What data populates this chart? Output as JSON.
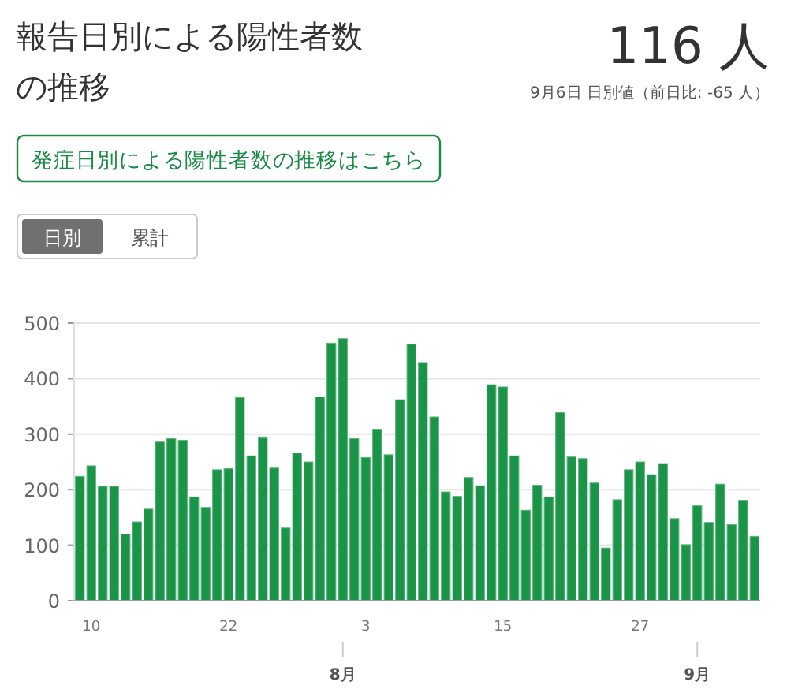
{
  "chart_data": {
    "type": "bar",
    "title": "報告日別による陽性者数の推移",
    "annotations": [
      "116 人",
      "9月6日 日別値（前日比: -65 人）",
      "発症日別による陽性者数の推移はこちら",
      "日別",
      "累計",
      {
        "text": "8月",
        "x": "--08-01"
      },
      {
        "text": "9月",
        "x": "--09-01"
      }
    ],
    "xlim": [
      "--07-09",
      "--09-06"
    ],
    "x": [
      "--07-09",
      "--07-10",
      "--07-11",
      "--07-12",
      "--07-13",
      "--07-14",
      "--07-15",
      "--07-16",
      "--07-17",
      "--07-18",
      "--07-19",
      "--07-20",
      "--07-21",
      "--07-22",
      "--07-23",
      "--07-24",
      "--07-25",
      "--07-26",
      "--07-27",
      "--07-28",
      "--07-29",
      "--07-30",
      "--07-31",
      "--08-01",
      "--08-02",
      "--08-03",
      "--08-04",
      "--08-05",
      "--08-06",
      "--08-07",
      "--08-08",
      "--08-09",
      "--08-10",
      "--08-11",
      "--08-12",
      "--08-13",
      "--08-14",
      "--08-15",
      "--08-16",
      "--08-17",
      "--08-18",
      "--08-19",
      "--08-20",
      "--08-21",
      "--08-22",
      "--08-23",
      "--08-24",
      "--08-25",
      "--08-26",
      "--08-27",
      "--08-28",
      "--08-29",
      "--08-30",
      "--08-31",
      "--09-01",
      "--09-02",
      "--09-03",
      "--09-04",
      "--09-05",
      "--09-06"
    ],
    "values": [
      224,
      243,
      206,
      206,
      120,
      142,
      165,
      286,
      292,
      289,
      187,
      168,
      236,
      238,
      366,
      261,
      295,
      239,
      131,
      266,
      250,
      367,
      464,
      472,
      292,
      258,
      309,
      263,
      362,
      462,
      429,
      331,
      196,
      188,
      222,
      207,
      389,
      385,
      261,
      163,
      208,
      187,
      339,
      259,
      256,
      212,
      95,
      182,
      236,
      250,
      227,
      247,
      148,
      101,
      171,
      141,
      210,
      137,
      181,
      116
    ],
    "color": "#1a9447",
    "ylim": [
      0,
      500
    ],
    "yticks": [
      0,
      100,
      200,
      300,
      400,
      500
    ],
    "xticks": [
      {
        "value": "--07-10",
        "label": "10"
      },
      {
        "value": "--07-22",
        "label": "22"
      },
      {
        "value": "--08-03",
        "label": "3"
      },
      {
        "value": "--08-15",
        "label": "15"
      },
      {
        "value": "--08-27",
        "label": "27"
      }
    ],
    "grid": "y"
  }
}
